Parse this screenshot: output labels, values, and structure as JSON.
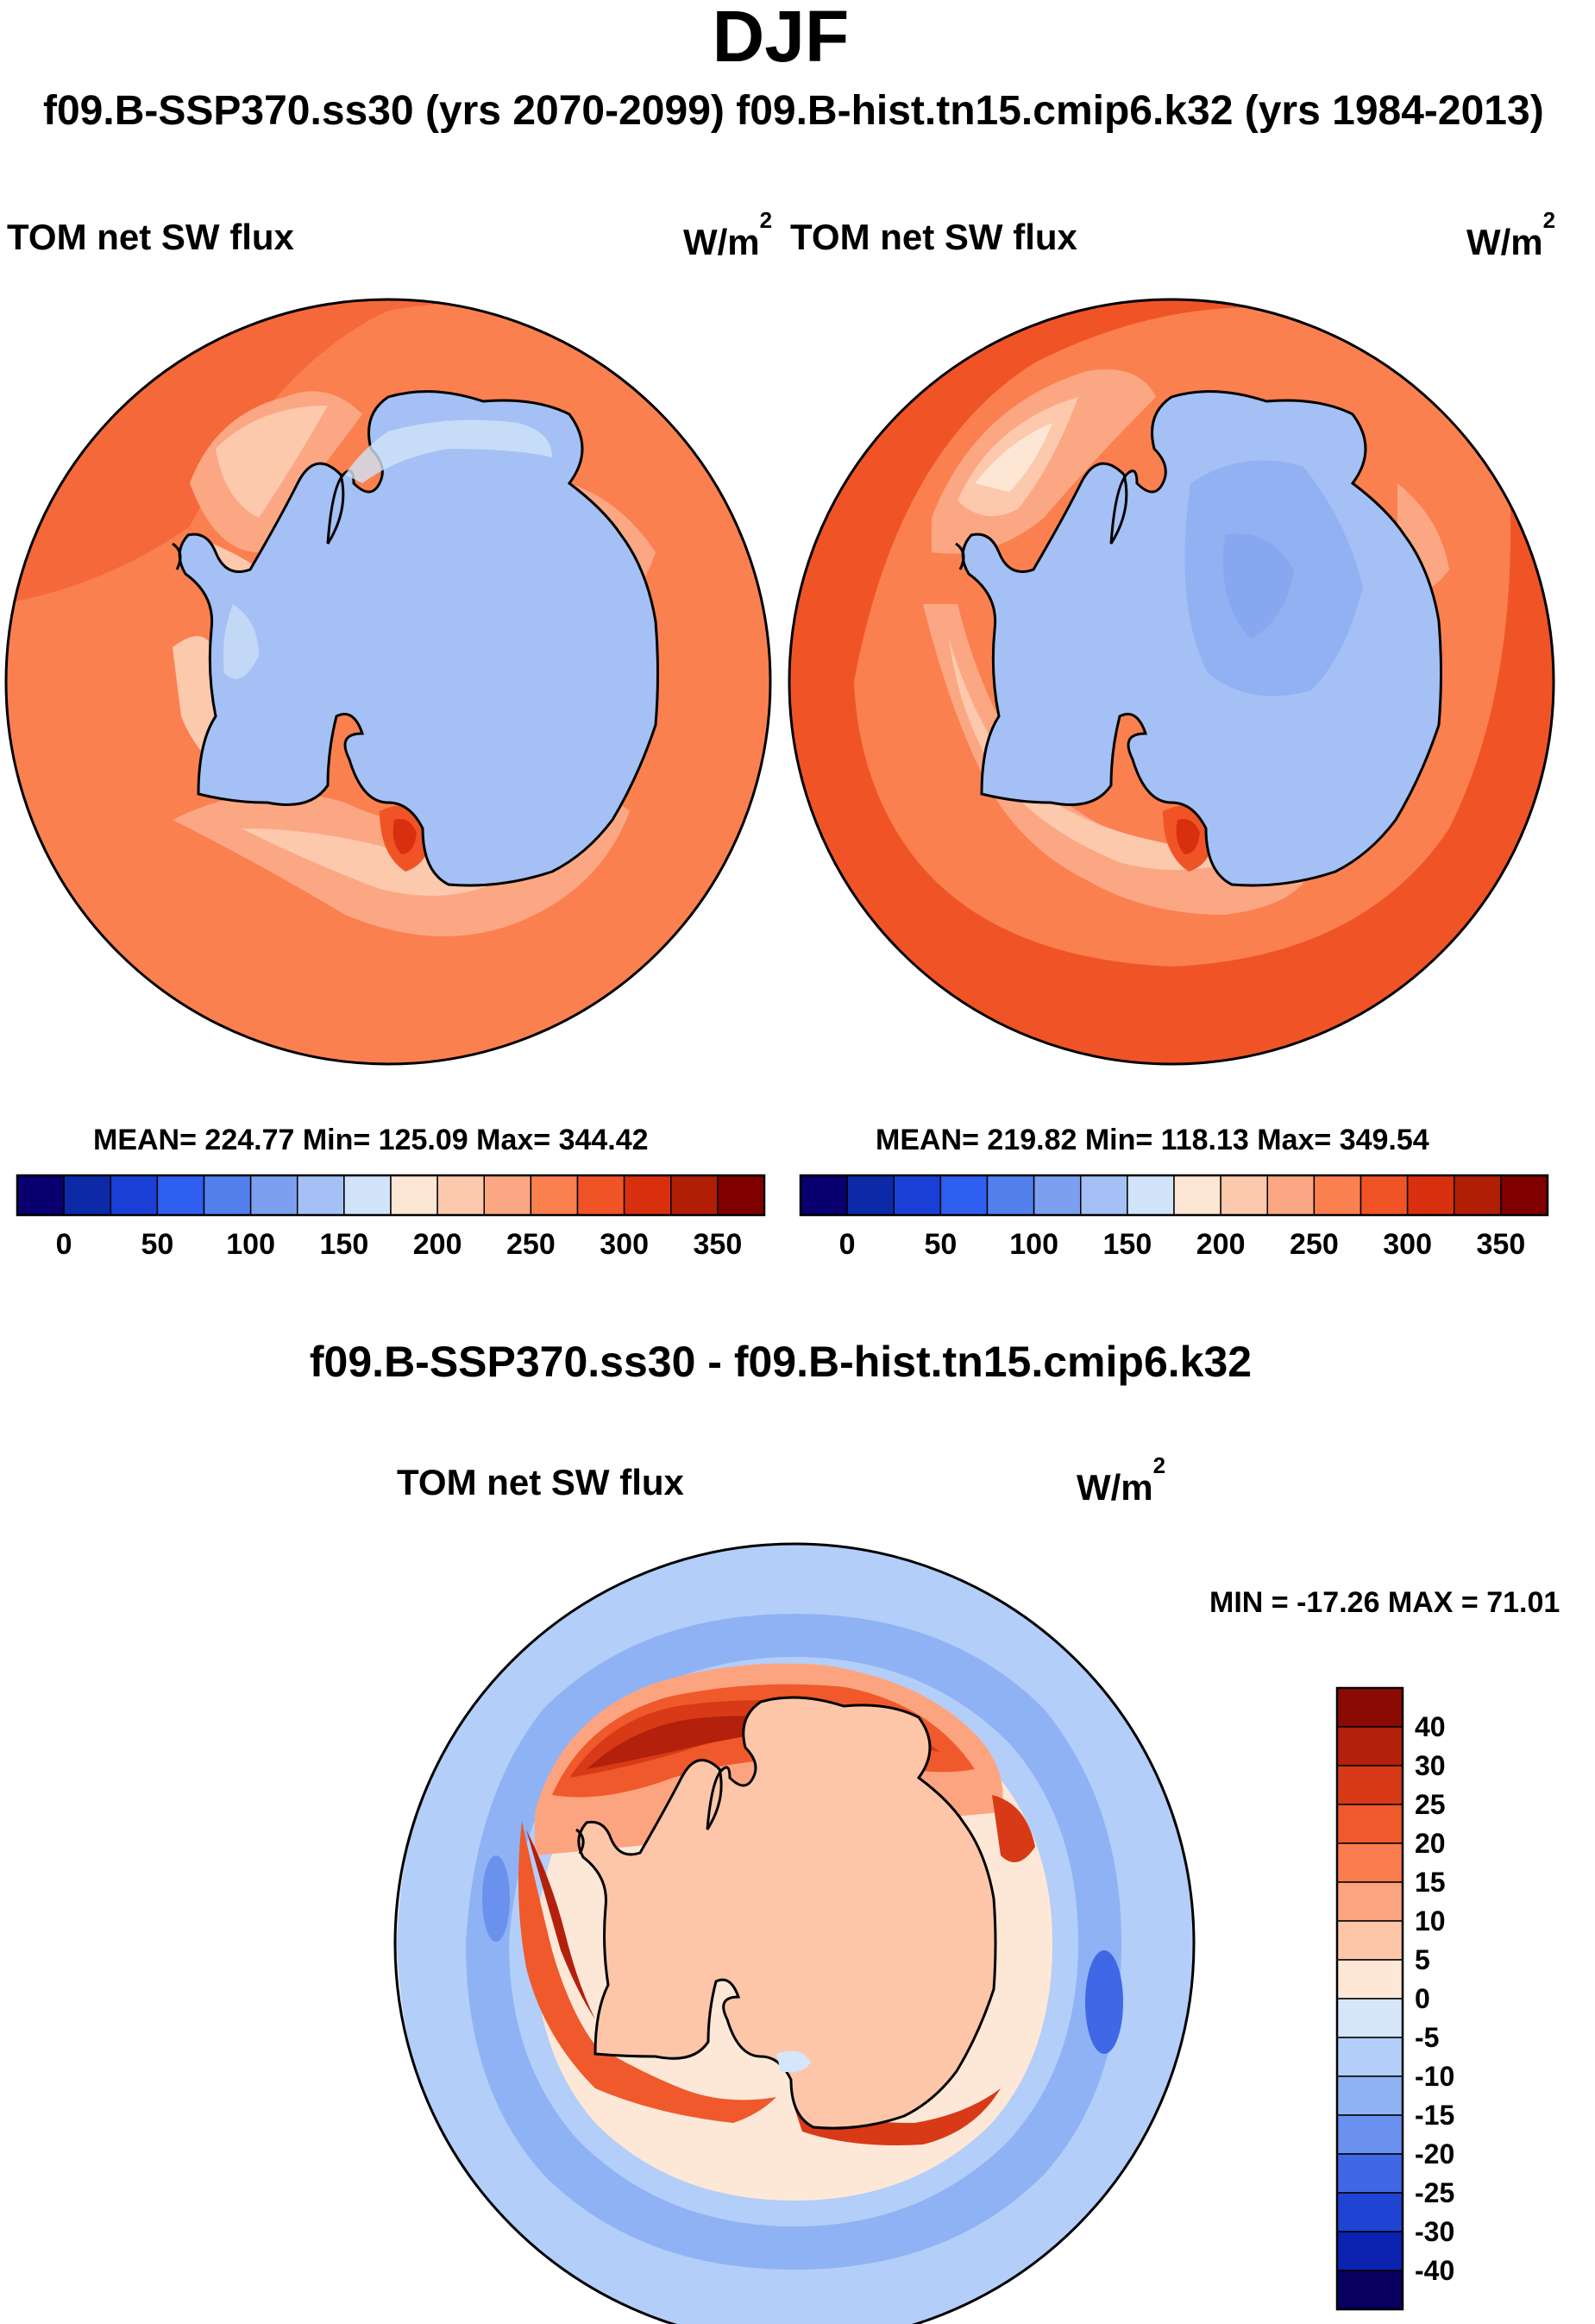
{
  "page": {
    "title": "DJF",
    "subtitle": "f09.B-SSP370.ss30 (yrs 2070-2099)  f09.B-hist.tn15.cmip6.k32 (yrs 1984-2013)"
  },
  "chart_data": [
    {
      "type": "heatmap",
      "projection": "south-polar-stereographic",
      "title": "TOM net SW flux",
      "units_base": "W/m",
      "units_exp": "2",
      "case": "f09.B-SSP370.ss30 (yrs 2070-2099)",
      "stats": {
        "text": "MEAN= 224.77  Min= 125.09  Max= 344.42",
        "mean": 224.77,
        "min": 125.09,
        "max": 344.42
      },
      "colorbar": {
        "orientation": "horizontal",
        "levels": [
          0,
          25,
          50,
          75,
          100,
          125,
          150,
          175,
          200,
          225,
          250,
          275,
          300,
          325,
          350
        ],
        "tick_labels": [
          "0",
          "50",
          "100",
          "150",
          "200",
          "250",
          "300",
          "350"
        ],
        "colors": [
          "#08006e",
          "#0c2aa8",
          "#1a3fd6",
          "#2f5ff0",
          "#5280ed",
          "#7c9ff0",
          "#a5c0f5",
          "#d0e3f8",
          "#fde6d4",
          "#fcc9ad",
          "#fca784",
          "#fb8050",
          "#f05426",
          "#d8300e",
          "#b01e05",
          "#800000"
        ]
      }
    },
    {
      "type": "heatmap",
      "projection": "south-polar-stereographic",
      "title": "TOM net SW flux",
      "units_base": "W/m",
      "units_exp": "2",
      "case": "f09.B-hist.tn15.cmip6.k32 (yrs 1984-2013)",
      "stats": {
        "text": "MEAN= 219.82  Min= 118.13  Max= 349.54",
        "mean": 219.82,
        "min": 118.13,
        "max": 349.54
      },
      "colorbar": {
        "orientation": "horizontal",
        "levels": [
          0,
          25,
          50,
          75,
          100,
          125,
          150,
          175,
          200,
          225,
          250,
          275,
          300,
          325,
          350
        ],
        "tick_labels": [
          "0",
          "50",
          "100",
          "150",
          "200",
          "250",
          "300",
          "350"
        ],
        "colors": [
          "#08006e",
          "#0c2aa8",
          "#1a3fd6",
          "#2f5ff0",
          "#5280ed",
          "#7c9ff0",
          "#a5c0f5",
          "#d0e3f8",
          "#fde6d4",
          "#fcc9ad",
          "#fca784",
          "#fb8050",
          "#f05426",
          "#d8300e",
          "#b01e05",
          "#800000"
        ]
      }
    },
    {
      "type": "heatmap",
      "projection": "south-polar-stereographic",
      "difference_title": "f09.B-SSP370.ss30 - f09.B-hist.tn15.cmip6.k32",
      "title": "TOM net SW flux",
      "units_base": "W/m",
      "units_exp": "2",
      "minmax": {
        "text": "MIN = -17.26 MAX =  71.01",
        "min": -17.26,
        "max": 71.01
      },
      "colorbar": {
        "orientation": "vertical",
        "tick_labels": [
          "40",
          "30",
          "25",
          "20",
          "15",
          "10",
          "5",
          "0",
          "-5",
          "-10",
          "-15",
          "-20",
          "-25",
          "-30",
          "-40"
        ],
        "colors": [
          "#8b0b04",
          "#b3200b",
          "#d83a17",
          "#f0592b",
          "#fb7d4f",
          "#fca47f",
          "#fdc6a8",
          "#fde8d8",
          "#d5e5fa",
          "#b3cef8",
          "#8fb2f4",
          "#6a91ee",
          "#3f67e6",
          "#1f43d2",
          "#0c22b0",
          "#07005e"
        ]
      }
    }
  ]
}
